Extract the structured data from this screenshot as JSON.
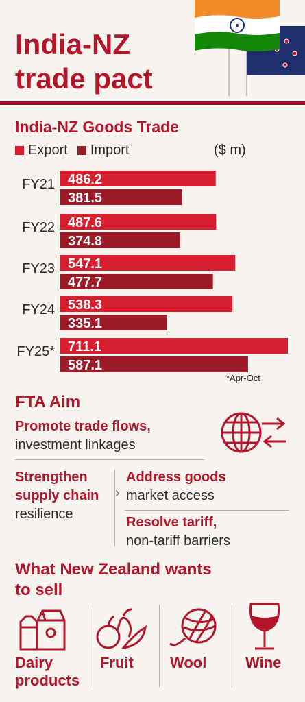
{
  "header": {
    "title": "India-NZ trade pact"
  },
  "chart_heading": "India-NZ Goods Trade",
  "legend": {
    "export": "Export",
    "import": "Import",
    "unit": "($ m)"
  },
  "colors": {
    "export": "#d81f30",
    "import": "#9b1b28",
    "accent": "#b3162b"
  },
  "chart_data": {
    "type": "bar",
    "title": "India-NZ Goods Trade",
    "unit": "($ m)",
    "categories": [
      "FY21",
      "FY22",
      "FY23",
      "FY24",
      "FY25*"
    ],
    "series": [
      {
        "name": "Export",
        "values": [
          486.2,
          487.6,
          547.1,
          538.3,
          711.1
        ]
      },
      {
        "name": "Import",
        "values": [
          381.5,
          374.8,
          477.7,
          335.1,
          587.1
        ]
      }
    ],
    "note": "*Apr-Oct"
  },
  "fta": {
    "title": "FTA Aim",
    "promote_bold": "Promote trade flows,",
    "promote_rest": "investment linkages",
    "supply_bold": "Strengthen supply chain",
    "supply_rest": "resilience",
    "address_bold": "Address goods",
    "address_rest": "market access",
    "resolve_bold": "Resolve tariff,",
    "resolve_rest": "non-tariff barriers"
  },
  "sell": {
    "title": "What New Zealand wants to sell",
    "items": [
      "Dairy products",
      "Fruit",
      "Wool",
      "Wine"
    ]
  }
}
